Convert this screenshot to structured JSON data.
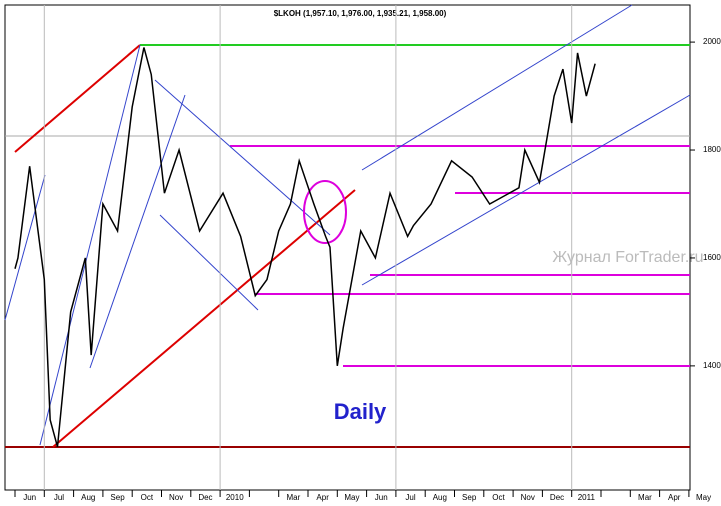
{
  "chart_data": {
    "type": "line",
    "title": "$LKOH (1,957.10, 1,976.00, 1,935.21, 1,958.00)",
    "annotation": "Daily",
    "watermark": "Журнал ForTrader.ru",
    "categories": [
      "Jun",
      "Jul",
      "Aug",
      "Sep",
      "Oct",
      "Nov",
      "Dec",
      "2010",
      null,
      "Mar",
      "Apr",
      "May",
      "Jun",
      "Jul",
      "Aug",
      "Sep",
      "Oct",
      "Nov",
      "Dec",
      "2011",
      null,
      "Mar",
      "Apr",
      "May"
    ],
    "series": [
      {
        "name": "$LKOH",
        "color": "#000000",
        "x": [
          0.0,
          0.1,
          0.5,
          1.0,
          1.2,
          1.45,
          1.9,
          2.4,
          2.6,
          3.0,
          3.5,
          4.0,
          4.4,
          4.65,
          5.1,
          5.6,
          6.3,
          7.1,
          7.7,
          8.2,
          8.6,
          9.0,
          9.4,
          9.7,
          10.2,
          10.6,
          10.75,
          11.0,
          11.2,
          11.8,
          12.3,
          12.8,
          13.4,
          13.6,
          14.2,
          14.9,
          15.6,
          16.2,
          17.2,
          17.4,
          17.9,
          18.4,
          18.7,
          19.0,
          19.2,
          19.5,
          19.8
        ],
        "values": [
          1580,
          1600,
          1770,
          1560,
          1300,
          1250,
          1500,
          1600,
          1420,
          1700,
          1650,
          1880,
          1990,
          1940,
          1720,
          1800,
          1650,
          1720,
          1640,
          1530,
          1560,
          1650,
          1700,
          1780,
          1700,
          1640,
          1620,
          1400,
          1470,
          1650,
          1600,
          1720,
          1640,
          1660,
          1700,
          1780,
          1750,
          1700,
          1730,
          1800,
          1740,
          1900,
          1950,
          1850,
          1980,
          1900,
          1960
        ]
      }
    ],
    "ylim": [
      1170,
      2078
    ],
    "yticks": [
      1400,
      1600,
      1800,
      2000
    ]
  }
}
